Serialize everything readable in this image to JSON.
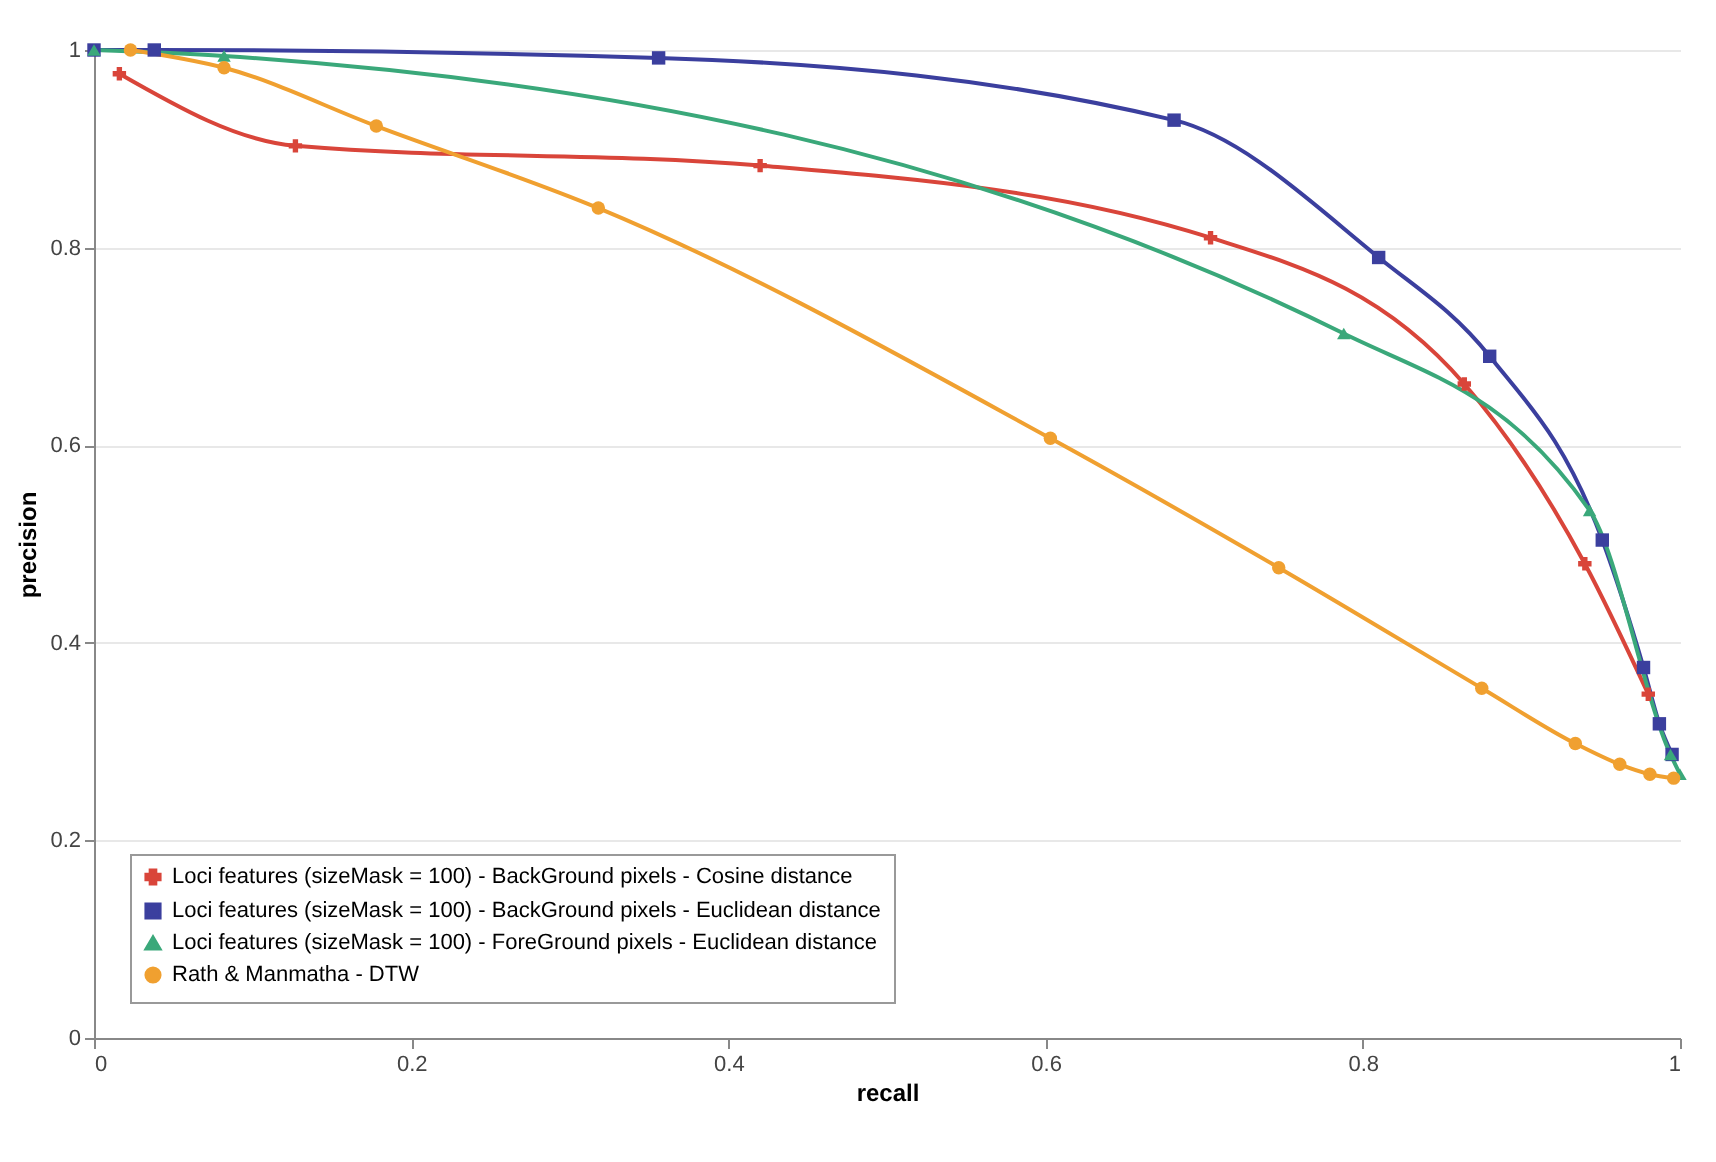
{
  "chart_data": {
    "type": "line",
    "xlabel": "recall",
    "ylabel": "precision",
    "xlim": [
      0,
      1
    ],
    "ylim": [
      0,
      1
    ],
    "xticks": [
      0,
      0.2,
      0.4,
      0.6,
      0.8,
      1
    ],
    "yticks": [
      0,
      0.2,
      0.4,
      0.6,
      0.8,
      1
    ],
    "grid": "y",
    "legend": "bottom left",
    "series": [
      {
        "name": "Loci features (sizeMask = 100) - BackGround pixels - Cosine distance",
        "color": "#d9453a",
        "marker": "cross",
        "x": [
          0.016,
          0.127,
          0.42,
          0.704,
          0.864,
          0.94,
          0.98
        ],
        "values": [
          0.976,
          0.903,
          0.883,
          0.81,
          0.662,
          0.48,
          0.348
        ]
      },
      {
        "name": "Loci features (sizeMask = 100) - BackGround pixels - Euclidean distance",
        "color": "#3b3f9e",
        "marker": "square",
        "x": [
          0,
          0.038,
          0.356,
          0.681,
          0.81,
          0.88,
          0.951,
          0.977,
          0.987,
          0.995
        ],
        "values": [
          1,
          1,
          0.992,
          0.929,
          0.79,
          0.69,
          0.504,
          0.375,
          0.318,
          0.287
        ]
      },
      {
        "name": "Loci features (sizeMask = 100) - ForeGround pixels - Euclidean distance",
        "color": "#3aa87a",
        "marker": "triangle",
        "x": [
          0,
          0.082,
          0.788,
          0.943,
          0.994,
          1
        ],
        "values": [
          1,
          0.994,
          0.713,
          0.534,
          0.287,
          0.267
        ]
      },
      {
        "name": "Rath & Manmatha - DTW",
        "color": "#f0a030",
        "marker": "circle",
        "x": [
          0.023,
          0.082,
          0.178,
          0.318,
          0.603,
          0.747,
          0.875,
          0.934,
          0.962,
          0.981,
          0.996
        ],
        "values": [
          1,
          0.982,
          0.923,
          0.84,
          0.607,
          0.476,
          0.354,
          0.298,
          0.277,
          0.267,
          0.263
        ]
      }
    ]
  }
}
